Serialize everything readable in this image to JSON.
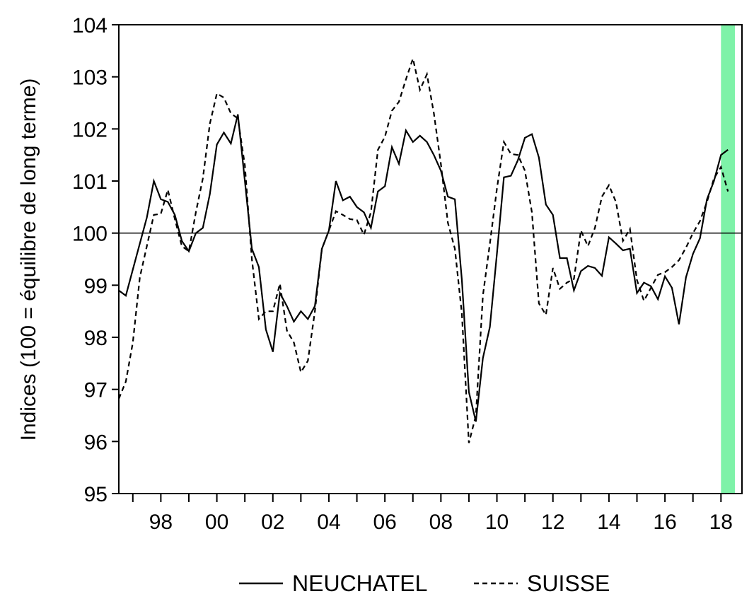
{
  "chart_data": {
    "type": "line",
    "title": "",
    "xlabel": "",
    "ylabel": "Indices (100 = équilibre de long terme)",
    "ylim": [
      95,
      104
    ],
    "xlim": [
      1996.5,
      2018.75
    ],
    "y_ticks": [
      95,
      96,
      97,
      98,
      99,
      100,
      101,
      102,
      103,
      104
    ],
    "x_ticks": [
      {
        "value": 1998,
        "label": "98"
      },
      {
        "value": 2000,
        "label": "00"
      },
      {
        "value": 2002,
        "label": "02"
      },
      {
        "value": 2004,
        "label": "04"
      },
      {
        "value": 2006,
        "label": "06"
      },
      {
        "value": 2008,
        "label": "08"
      },
      {
        "value": 2010,
        "label": "10"
      },
      {
        "value": 2012,
        "label": "12"
      },
      {
        "value": 2014,
        "label": "14"
      },
      {
        "value": 2016,
        "label": "16"
      },
      {
        "value": 2018,
        "label": "18"
      }
    ],
    "reference_line": 100,
    "shaded_region": {
      "x_start": 2018.0,
      "x_end": 2018.5,
      "color": "#7ef2a8"
    },
    "legend_position": "bottom-center",
    "series": [
      {
        "name": "NEUCHATEL",
        "style": "solid",
        "color": "#000000",
        "points": [
          [
            1996.5,
            98.9
          ],
          [
            1996.75,
            98.8
          ],
          [
            1997.0,
            99.3
          ],
          [
            1997.25,
            99.8
          ],
          [
            1997.5,
            100.3
          ],
          [
            1997.75,
            101.0
          ],
          [
            1998.0,
            100.65
          ],
          [
            1998.25,
            100.6
          ],
          [
            1998.5,
            100.35
          ],
          [
            1998.75,
            99.85
          ],
          [
            1999.0,
            99.65
          ],
          [
            1999.25,
            100.0
          ],
          [
            1999.5,
            100.1
          ],
          [
            1999.75,
            100.75
          ],
          [
            2000.0,
            101.7
          ],
          [
            2000.25,
            101.93
          ],
          [
            2000.5,
            101.72
          ],
          [
            2000.75,
            102.28
          ],
          [
            2001.0,
            101.0
          ],
          [
            2001.25,
            99.7
          ],
          [
            2001.5,
            99.35
          ],
          [
            2001.75,
            98.15
          ],
          [
            2002.0,
            97.72
          ],
          [
            2002.25,
            98.85
          ],
          [
            2002.5,
            98.6
          ],
          [
            2002.75,
            98.3
          ],
          [
            2003.0,
            98.5
          ],
          [
            2003.25,
            98.35
          ],
          [
            2003.5,
            98.6
          ],
          [
            2003.75,
            99.7
          ],
          [
            2004.0,
            100.05
          ],
          [
            2004.25,
            101.0
          ],
          [
            2004.5,
            100.63
          ],
          [
            2004.75,
            100.7
          ],
          [
            2005.0,
            100.5
          ],
          [
            2005.25,
            100.4
          ],
          [
            2005.5,
            100.1
          ],
          [
            2005.75,
            100.8
          ],
          [
            2006.0,
            100.9
          ],
          [
            2006.25,
            101.65
          ],
          [
            2006.5,
            101.33
          ],
          [
            2006.75,
            101.97
          ],
          [
            2007.0,
            101.75
          ],
          [
            2007.25,
            101.87
          ],
          [
            2007.5,
            101.75
          ],
          [
            2007.75,
            101.5
          ],
          [
            2008.0,
            101.2
          ],
          [
            2008.25,
            100.7
          ],
          [
            2008.5,
            100.65
          ],
          [
            2008.75,
            99.1
          ],
          [
            2009.0,
            96.95
          ],
          [
            2009.25,
            96.38
          ],
          [
            2009.5,
            97.6
          ],
          [
            2009.75,
            98.2
          ],
          [
            2010.0,
            99.6
          ],
          [
            2010.25,
            101.07
          ],
          [
            2010.5,
            101.1
          ],
          [
            2010.75,
            101.4
          ],
          [
            2011.0,
            101.83
          ],
          [
            2011.25,
            101.9
          ],
          [
            2011.5,
            101.45
          ],
          [
            2011.75,
            100.55
          ],
          [
            2012.0,
            100.35
          ],
          [
            2012.25,
            99.52
          ],
          [
            2012.5,
            99.52
          ],
          [
            2012.75,
            98.9
          ],
          [
            2013.0,
            99.27
          ],
          [
            2013.25,
            99.37
          ],
          [
            2013.5,
            99.33
          ],
          [
            2013.75,
            99.18
          ],
          [
            2014.0,
            99.92
          ],
          [
            2014.25,
            99.8
          ],
          [
            2014.5,
            99.67
          ],
          [
            2014.75,
            99.7
          ],
          [
            2015.0,
            98.85
          ],
          [
            2015.25,
            99.05
          ],
          [
            2015.5,
            98.98
          ],
          [
            2015.75,
            98.73
          ],
          [
            2016.0,
            99.17
          ],
          [
            2016.25,
            98.95
          ],
          [
            2016.5,
            98.25
          ],
          [
            2016.75,
            99.15
          ],
          [
            2017.0,
            99.6
          ],
          [
            2017.25,
            99.9
          ],
          [
            2017.5,
            100.65
          ],
          [
            2017.75,
            101.0
          ],
          [
            2018.0,
            101.5
          ],
          [
            2018.25,
            101.6
          ]
        ]
      },
      {
        "name": "SUISSE",
        "style": "dashed",
        "color": "#000000",
        "points": [
          [
            1996.5,
            96.82
          ],
          [
            1996.75,
            97.15
          ],
          [
            1997.0,
            97.9
          ],
          [
            1997.25,
            99.15
          ],
          [
            1997.5,
            99.75
          ],
          [
            1997.75,
            100.35
          ],
          [
            1998.0,
            100.37
          ],
          [
            1998.25,
            100.83
          ],
          [
            1998.5,
            100.27
          ],
          [
            1998.75,
            99.75
          ],
          [
            1999.0,
            99.65
          ],
          [
            1999.25,
            100.4
          ],
          [
            1999.5,
            101.05
          ],
          [
            1999.75,
            102.1
          ],
          [
            2000.0,
            102.68
          ],
          [
            2000.25,
            102.6
          ],
          [
            2000.5,
            102.3
          ],
          [
            2000.75,
            102.2
          ],
          [
            2001.0,
            101.3
          ],
          [
            2001.25,
            99.5
          ],
          [
            2001.5,
            98.35
          ],
          [
            2001.75,
            98.5
          ],
          [
            2002.0,
            98.5
          ],
          [
            2002.25,
            99.03
          ],
          [
            2002.5,
            98.13
          ],
          [
            2002.75,
            97.9
          ],
          [
            2003.0,
            97.33
          ],
          [
            2003.25,
            97.55
          ],
          [
            2003.5,
            98.5
          ],
          [
            2003.75,
            99.7
          ],
          [
            2004.0,
            100.05
          ],
          [
            2004.25,
            100.42
          ],
          [
            2004.5,
            100.35
          ],
          [
            2004.75,
            100.27
          ],
          [
            2005.0,
            100.25
          ],
          [
            2005.25,
            99.97
          ],
          [
            2005.5,
            100.4
          ],
          [
            2005.75,
            101.6
          ],
          [
            2006.0,
            101.85
          ],
          [
            2006.25,
            102.35
          ],
          [
            2006.5,
            102.52
          ],
          [
            2006.75,
            102.95
          ],
          [
            2007.0,
            103.35
          ],
          [
            2007.25,
            102.75
          ],
          [
            2007.5,
            103.05
          ],
          [
            2007.75,
            102.3
          ],
          [
            2008.0,
            101.33
          ],
          [
            2008.25,
            100.2
          ],
          [
            2008.5,
            99.7
          ],
          [
            2008.75,
            98.45
          ],
          [
            2009.0,
            95.97
          ],
          [
            2009.25,
            96.5
          ],
          [
            2009.5,
            98.8
          ],
          [
            2009.75,
            99.8
          ],
          [
            2010.0,
            100.85
          ],
          [
            2010.25,
            101.75
          ],
          [
            2010.5,
            101.52
          ],
          [
            2010.75,
            101.5
          ],
          [
            2011.0,
            101.2
          ],
          [
            2011.25,
            100.4
          ],
          [
            2011.5,
            98.65
          ],
          [
            2011.75,
            98.43
          ],
          [
            2012.0,
            99.33
          ],
          [
            2012.25,
            98.93
          ],
          [
            2012.5,
            99.05
          ],
          [
            2012.75,
            99.12
          ],
          [
            2013.0,
            100.05
          ],
          [
            2013.25,
            99.75
          ],
          [
            2013.5,
            100.1
          ],
          [
            2013.75,
            100.7
          ],
          [
            2014.0,
            100.92
          ],
          [
            2014.25,
            100.6
          ],
          [
            2014.5,
            99.85
          ],
          [
            2014.75,
            100.08
          ],
          [
            2015.0,
            99.1
          ],
          [
            2015.25,
            98.7
          ],
          [
            2015.5,
            98.95
          ],
          [
            2015.75,
            99.2
          ],
          [
            2016.0,
            99.25
          ],
          [
            2016.25,
            99.35
          ],
          [
            2016.5,
            99.48
          ],
          [
            2016.75,
            99.72
          ],
          [
            2017.0,
            100.0
          ],
          [
            2017.25,
            100.23
          ],
          [
            2017.5,
            100.6
          ],
          [
            2017.75,
            101.05
          ],
          [
            2018.0,
            101.27
          ],
          [
            2018.25,
            100.8
          ]
        ]
      }
    ]
  }
}
